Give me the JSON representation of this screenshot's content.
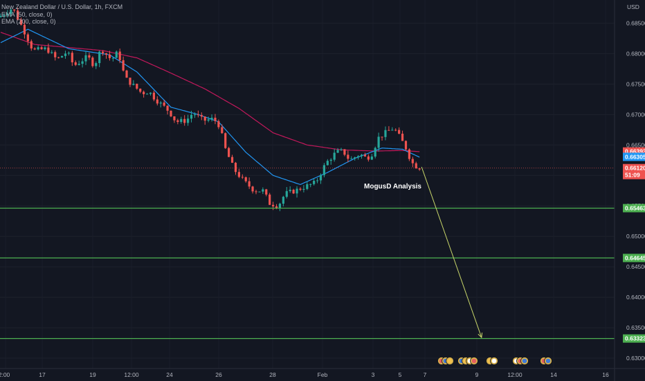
{
  "legend": {
    "symbol": "New Zealand Dollar / U.S. Dollar, 1h, FXCM",
    "ema50": "EMA (50, close, 0)",
    "ema200": "EMA (200, close, 0)"
  },
  "currency_label": "USD",
  "annotation": "MogusD Analysis",
  "colors": {
    "background": "#131722",
    "up_candle": "#26a69a",
    "down_candle": "#ef5350",
    "ema50": "#2196f3",
    "ema200": "#c2185b",
    "support_line": "#4caf50",
    "projection_arrow": "#c8d66a"
  },
  "price_badges": {
    "ema200": "0.66393",
    "ema50": "0.66305",
    "last_price": "0.66120",
    "countdown": "51:09"
  },
  "support_levels": [
    {
      "label": "0.65463"
    },
    {
      "label": "0.64645"
    },
    {
      "label": "0.63323"
    }
  ],
  "event_icons": [
    "economic-event-icon-group-1",
    "economic-event-icon-group-2",
    "economic-event-icon-group-3",
    "economic-event-icon-group-4"
  ],
  "chart_data": {
    "type": "candlestick",
    "symbol": "NZDUSD",
    "timeframe": "1h",
    "y_ticks": [
      "0.68500",
      "0.68000",
      "0.67500",
      "0.67000",
      "0.66500",
      "0.66000",
      "0.65500",
      "0.65000",
      "0.64500",
      "0.64000",
      "0.63500",
      "0.63000"
    ],
    "ylim": [
      0.6283,
      0.6888
    ],
    "x_ticks": [
      "2:00",
      "17",
      "19",
      "12:00",
      "24",
      "26",
      "28",
      "Feb",
      "3",
      "5",
      "7",
      "9",
      "12:00",
      "14",
      "16"
    ],
    "price_path": [
      [
        0,
        0.686
      ],
      [
        4,
        0.6875
      ],
      [
        8,
        0.683
      ],
      [
        10,
        0.6805
      ],
      [
        14,
        0.6808
      ],
      [
        17,
        0.679
      ],
      [
        20,
        0.6803
      ],
      [
        22,
        0.678
      ],
      [
        26,
        0.6795
      ],
      [
        28,
        0.678
      ],
      [
        30,
        0.6808
      ],
      [
        33,
        0.679
      ],
      [
        35,
        0.6803
      ],
      [
        37,
        0.676
      ],
      [
        40,
        0.6745
      ],
      [
        42,
        0.6735
      ],
      [
        44,
        0.6738
      ],
      [
        46,
        0.6725
      ],
      [
        50,
        0.6705
      ],
      [
        52,
        0.6688
      ],
      [
        55,
        0.669
      ],
      [
        57,
        0.6703
      ],
      [
        60,
        0.669
      ],
      [
        63,
        0.6693
      ],
      [
        65,
        0.668
      ],
      [
        66,
        0.665
      ],
      [
        69,
        0.661
      ],
      [
        72,
        0.659
      ],
      [
        75,
        0.6575
      ],
      [
        78,
        0.6575
      ],
      [
        79,
        0.6555
      ],
      [
        82,
        0.655
      ],
      [
        84,
        0.657
      ],
      [
        87,
        0.6575
      ],
      [
        90,
        0.6582
      ],
      [
        93,
        0.6588
      ],
      [
        96,
        0.662
      ],
      [
        99,
        0.6638
      ],
      [
        101,
        0.664
      ],
      [
        103,
        0.6625
      ],
      [
        106,
        0.6635
      ],
      [
        108,
        0.6628
      ],
      [
        110,
        0.6638
      ],
      [
        111,
        0.666
      ],
      [
        114,
        0.6672
      ],
      [
        116,
        0.6678
      ],
      [
        118,
        0.666
      ],
      [
        120,
        0.664
      ],
      [
        121,
        0.6622
      ],
      [
        123,
        0.6613
      ]
    ],
    "ema50_path": [
      [
        0,
        0.6818
      ],
      [
        8,
        0.684
      ],
      [
        20,
        0.6808
      ],
      [
        32,
        0.6798
      ],
      [
        40,
        0.677
      ],
      [
        50,
        0.6712
      ],
      [
        58,
        0.67
      ],
      [
        64,
        0.6688
      ],
      [
        72,
        0.6638
      ],
      [
        80,
        0.66
      ],
      [
        88,
        0.6585
      ],
      [
        96,
        0.6605
      ],
      [
        104,
        0.6628
      ],
      [
        112,
        0.6645
      ],
      [
        118,
        0.6643
      ],
      [
        123,
        0.663
      ]
    ],
    "ema200_path": [
      [
        0,
        0.6835
      ],
      [
        10,
        0.6815
      ],
      [
        20,
        0.681
      ],
      [
        30,
        0.6805
      ],
      [
        40,
        0.6793
      ],
      [
        50,
        0.6768
      ],
      [
        60,
        0.6742
      ],
      [
        70,
        0.671
      ],
      [
        80,
        0.667
      ],
      [
        90,
        0.665
      ],
      [
        100,
        0.6642
      ],
      [
        110,
        0.664
      ],
      [
        118,
        0.6641
      ],
      [
        123,
        0.6639
      ]
    ],
    "support_levels": [
      0.65463,
      0.64645,
      0.63323
    ],
    "projection": {
      "from": [
        123,
        0.6614
      ],
      "to": [
        140,
        0.6334
      ]
    },
    "annotations": [
      "MogusD Analysis"
    ]
  }
}
